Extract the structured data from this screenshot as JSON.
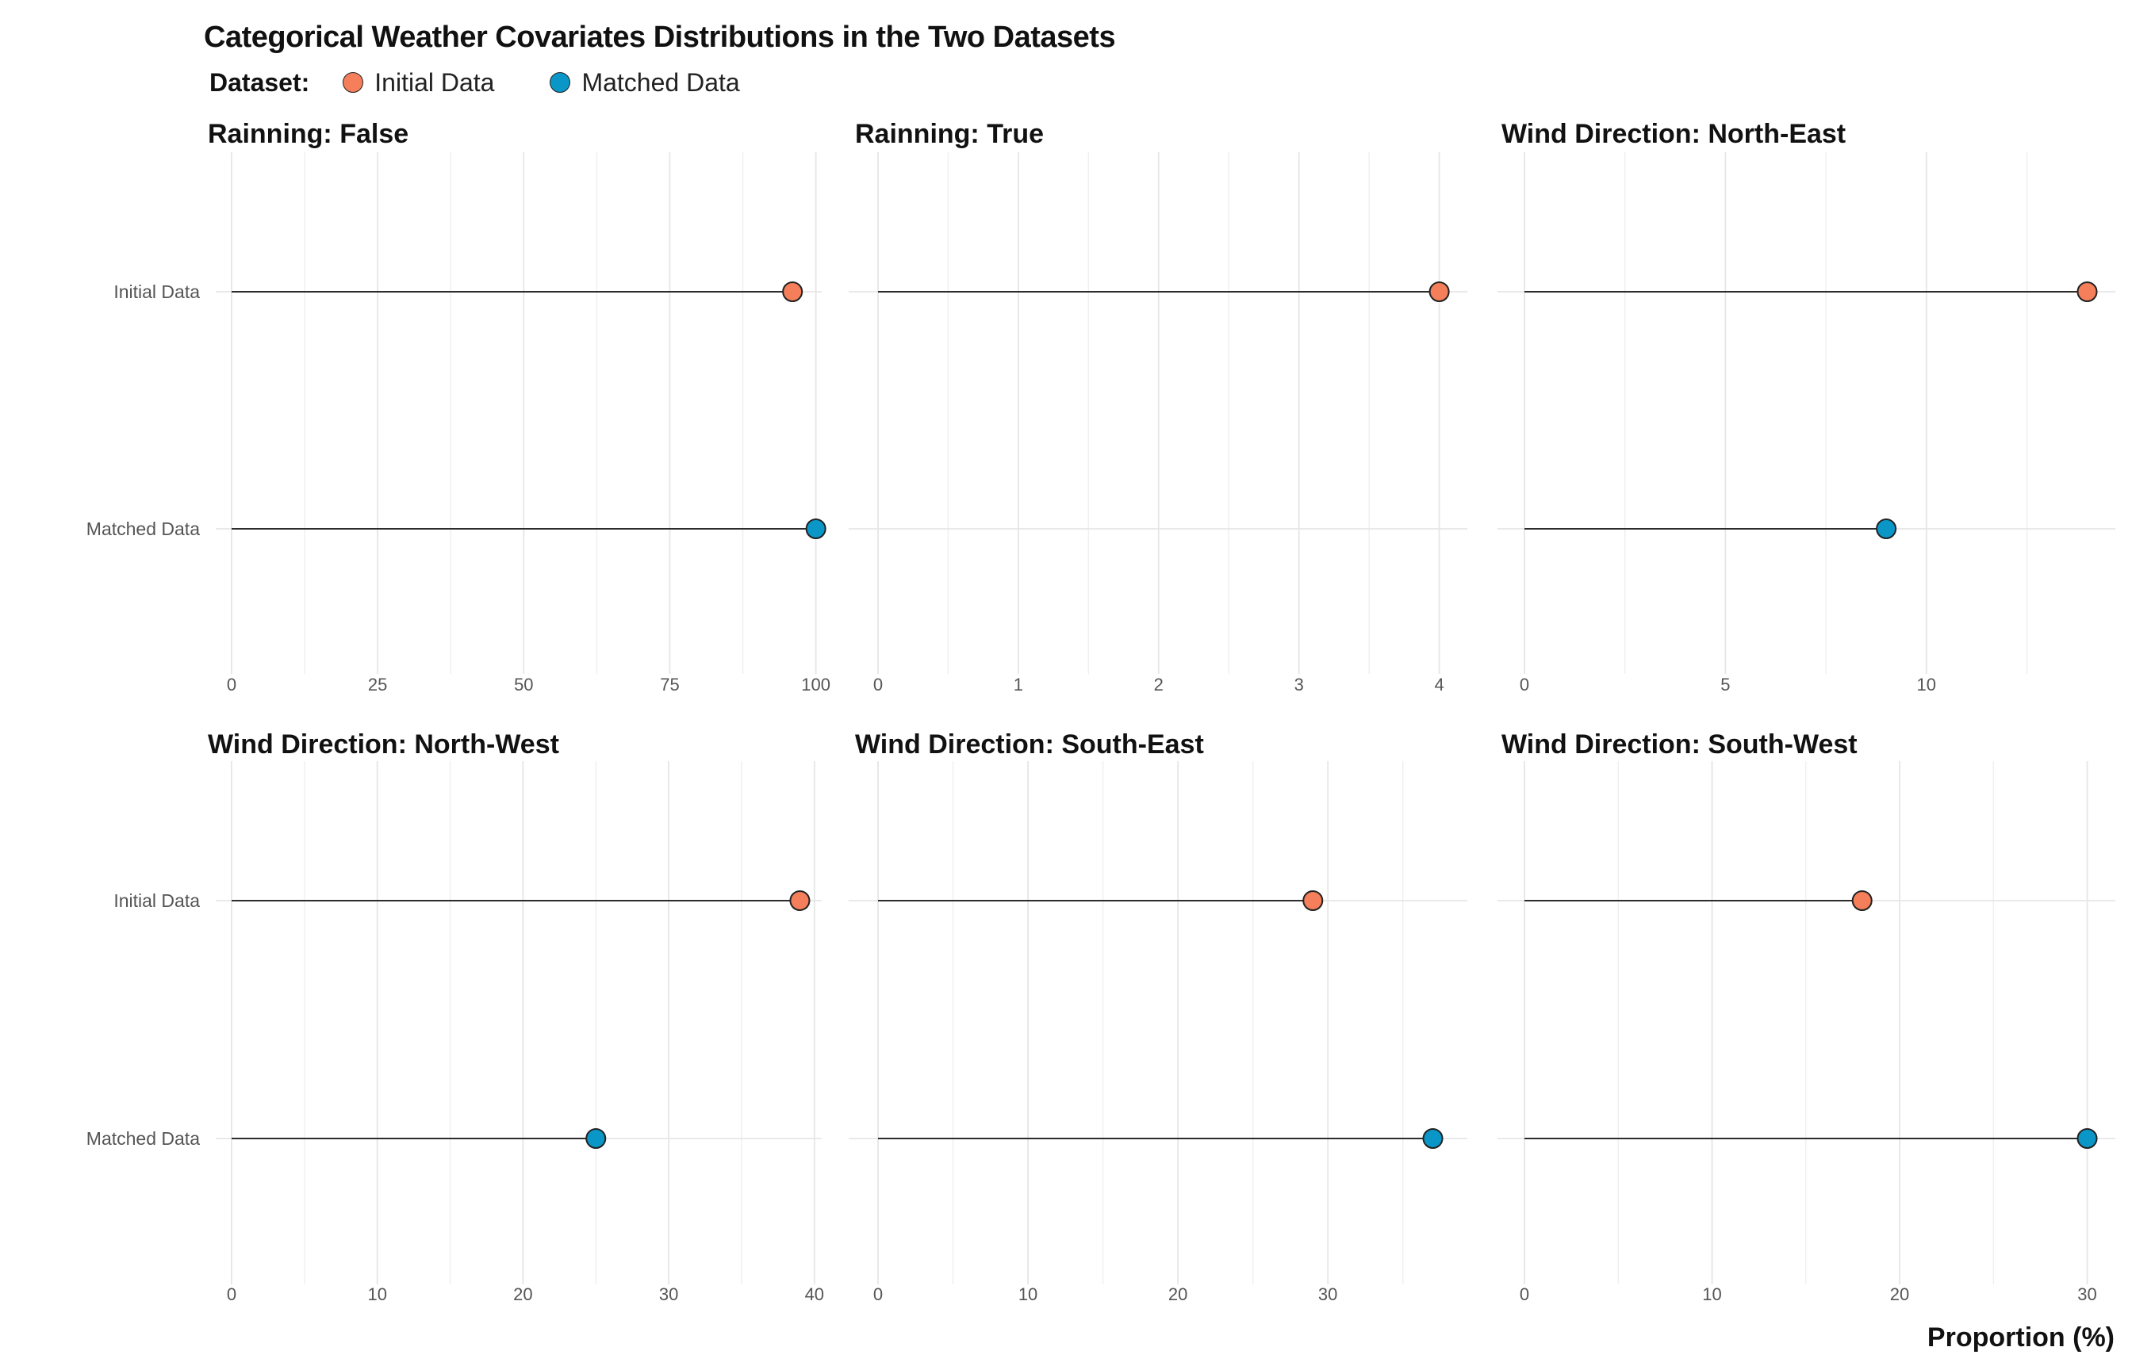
{
  "title": "Categorical Weather Covariates Distributions in the Two Datasets",
  "legend": {
    "title": "Dataset:",
    "items": [
      {
        "label": "Initial Data",
        "color": "#F47F5A"
      },
      {
        "label": "Matched Data",
        "color": "#0A97C8"
      }
    ]
  },
  "chart_data": {
    "type": "scatter",
    "title": "Categorical Weather Covariates Distributions in the Two Datasets",
    "xlabel": "Proportion (%)",
    "ylabel": "",
    "categories": [
      "Initial Data",
      "Matched Data"
    ],
    "colors": {
      "Initial Data": "#F47F5A",
      "Matched Data": "#0A97C8"
    },
    "grid": true,
    "legend_position": "top-left",
    "facets": [
      {
        "title": "Rainning: False",
        "xlim": [
          0,
          101
        ],
        "ticks": [
          0,
          25,
          50,
          75,
          100
        ],
        "values": {
          "Initial Data": 96,
          "Matched Data": 100
        }
      },
      {
        "title": "Rainning: True",
        "xlim": [
          0,
          4.2
        ],
        "ticks": [
          0,
          1,
          2,
          3,
          4
        ],
        "values": {
          "Initial Data": 4,
          "Matched Data": null
        }
      },
      {
        "title": "Wind Direction: North-East",
        "xlim": [
          0,
          14.7
        ],
        "ticks": [
          0,
          5,
          10
        ],
        "values": {
          "Initial Data": 14,
          "Matched Data": 9
        }
      },
      {
        "title": "Wind Direction: North-West",
        "xlim": [
          0,
          40.5
        ],
        "ticks": [
          0,
          10,
          20,
          30,
          40
        ],
        "values": {
          "Initial Data": 39,
          "Matched Data": 25
        }
      },
      {
        "title": "Wind Direction: South-East",
        "xlim": [
          0,
          39.3
        ],
        "ticks": [
          0,
          10,
          20,
          30
        ],
        "values": {
          "Initial Data": 29,
          "Matched Data": 37
        }
      },
      {
        "title": "Wind Direction: South-West",
        "xlim": [
          0,
          31.5
        ],
        "ticks": [
          0,
          10,
          20,
          30
        ],
        "values": {
          "Initial Data": 18,
          "Matched Data": 30
        }
      }
    ]
  }
}
